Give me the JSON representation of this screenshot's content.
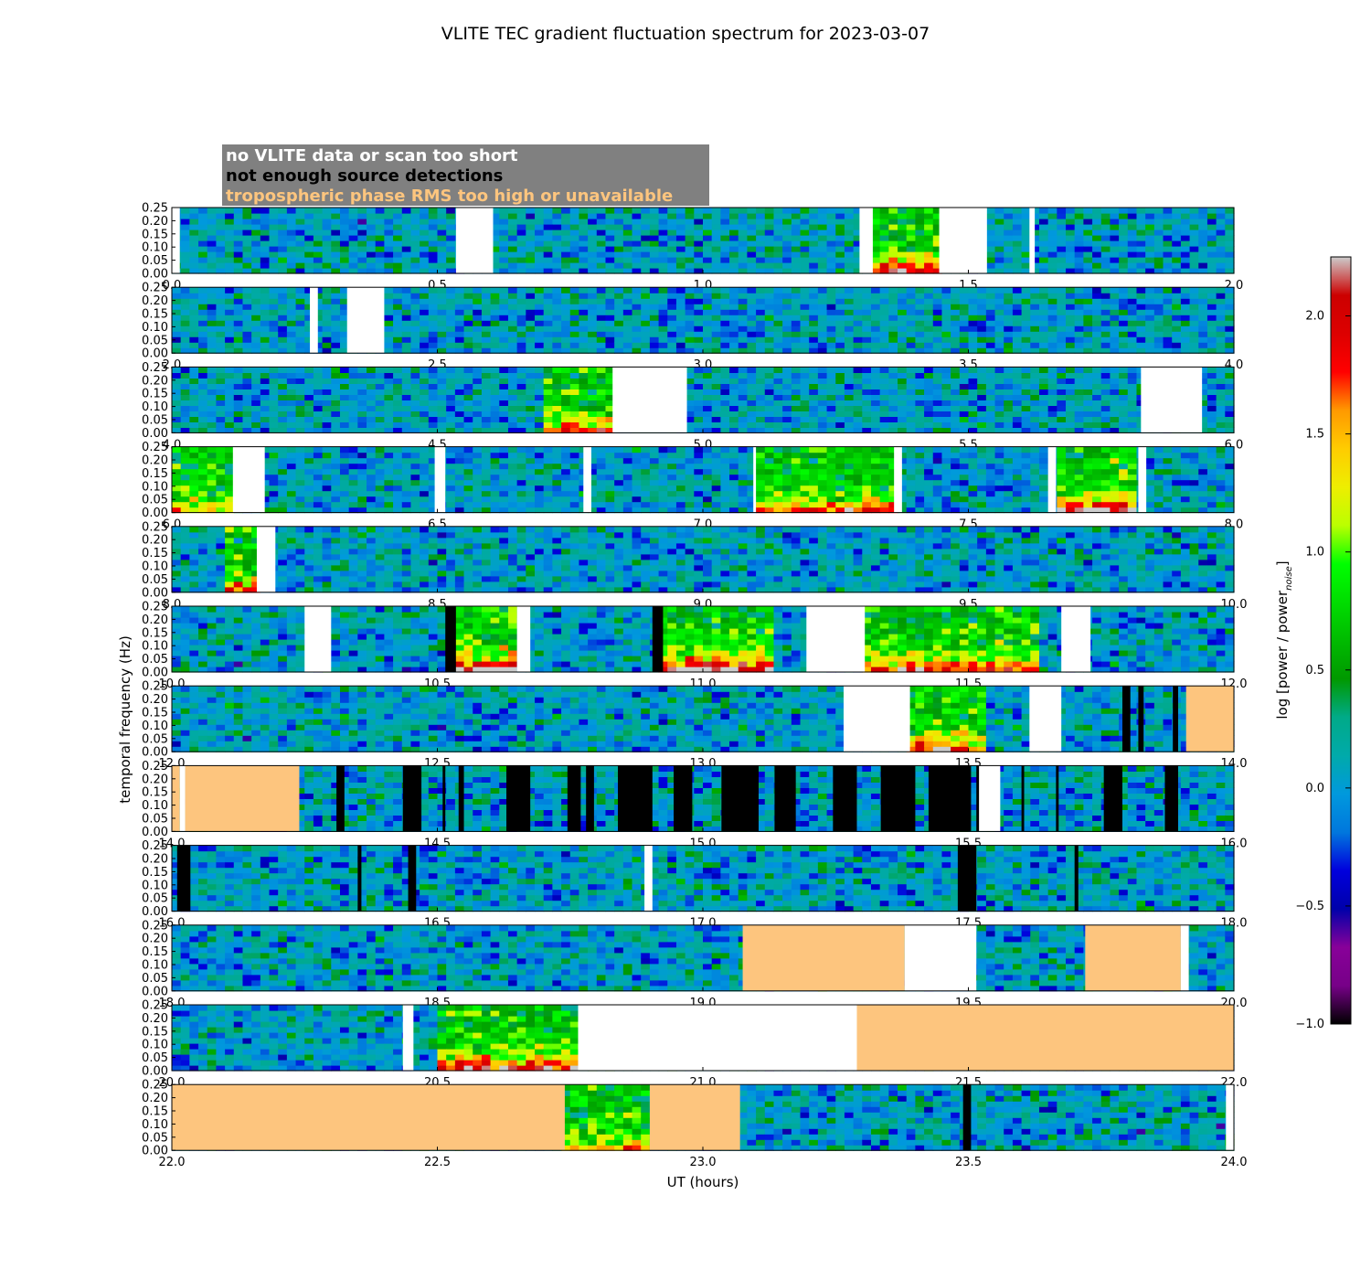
{
  "chart_data": {
    "type": "heatmap",
    "title": "VLITE TEC gradient fluctuation spectrum for 2023-03-07",
    "xlabel": "UT (hours)",
    "ylabel": "temporal frequency (Hz)",
    "colorbar_label": "log [power / power",
    "colorbar_label_subscript": "noise",
    "colorbar_label_close": "]",
    "colorbar_range": [
      -1.0,
      2.25
    ],
    "colorbar_ticks": [
      "−1.0",
      "−0.5",
      "0.0",
      "0.5",
      "1.0",
      "1.5",
      "2.0"
    ],
    "colormap": "nipy_spectral",
    "ylim": [
      0,
      0.25
    ],
    "y_ticks": [
      "0.00",
      "0.05",
      "0.10",
      "0.15",
      "0.20",
      "0.25"
    ],
    "legend": [
      {
        "label": "no VLITE data or scan too short",
        "color": "#ffffff"
      },
      {
        "label": "not enough source detections",
        "color": "#000000"
      },
      {
        "label": "tropospheric phase RMS too high or unavailable",
        "color": "#fdc57e"
      }
    ],
    "panels": [
      {
        "xlim": [
          0,
          2
        ],
        "x_ticks": [
          "0.0",
          "0.5",
          "1.0",
          "1.5",
          "2.0"
        ],
        "nodata": [
          [
            0,
            0.015
          ],
          [
            0.535,
            0.605
          ],
          [
            1.295,
            1.32
          ],
          [
            1.445,
            1.535
          ],
          [
            1.615,
            1.625
          ]
        ],
        "few": [],
        "tropo": [],
        "active": [
          [
            1.32,
            1.445,
            1.6
          ]
        ]
      },
      {
        "xlim": [
          2,
          4
        ],
        "x_ticks": [
          "2.0",
          "2.5",
          "3.0",
          "3.5",
          "4.0"
        ],
        "nodata": [
          [
            2.26,
            2.275
          ],
          [
            2.33,
            2.4
          ]
        ],
        "few": [],
        "tropo": [],
        "active": []
      },
      {
        "xlim": [
          4,
          6
        ],
        "x_ticks": [
          "4.0",
          "4.5",
          "5.0",
          "5.5",
          "6.0"
        ],
        "nodata": [
          [
            4.83,
            4.97
          ],
          [
            5.825,
            5.94
          ]
        ],
        "few": [],
        "tropo": [],
        "active": [
          [
            4.7,
            4.83,
            1.2
          ]
        ]
      },
      {
        "xlim": [
          6,
          8
        ],
        "x_ticks": [
          "6.0",
          "6.5",
          "7.0",
          "7.5",
          "8.0"
        ],
        "nodata": [
          [
            6.115,
            6.175
          ],
          [
            6.495,
            6.515
          ],
          [
            6.775,
            6.79
          ],
          [
            7.095,
            7.1
          ],
          [
            7.36,
            7.375
          ],
          [
            7.65,
            7.665
          ],
          [
            7.82,
            7.835
          ]
        ],
        "few": [],
        "tropo": [],
        "active": [
          [
            7.1,
            7.36,
            1.3
          ],
          [
            7.665,
            7.82,
            1.7
          ],
          [
            6.0,
            6.115,
            0.9
          ]
        ]
      },
      {
        "xlim": [
          8,
          10
        ],
        "x_ticks": [
          "8.0",
          "8.5",
          "9.0",
          "9.5",
          "10.0"
        ],
        "nodata": [
          [
            8.16,
            8.195
          ]
        ],
        "few": [],
        "tropo": [],
        "active": [
          [
            8.095,
            8.16,
            1.3
          ]
        ]
      },
      {
        "xlim": [
          10,
          12
        ],
        "x_ticks": [
          "10.0",
          "10.5",
          "11.0",
          "11.5",
          "12.0"
        ],
        "nodata": [
          [
            10.25,
            10.3
          ],
          [
            10.65,
            10.675
          ],
          [
            11.195,
            11.305
          ],
          [
            11.675,
            11.73
          ]
        ],
        "few": [
          [
            10.515,
            10.535
          ],
          [
            10.905,
            10.925
          ]
        ],
        "tropo": [],
        "active": [
          [
            10.535,
            10.65,
            2.2
          ],
          [
            10.925,
            11.14,
            2.0
          ],
          [
            11.305,
            11.64,
            1.5
          ]
        ]
      },
      {
        "xlim": [
          12,
          14
        ],
        "x_ticks": [
          "12.0",
          "12.5",
          "13.0",
          "13.5",
          "14.0"
        ],
        "nodata": [
          [
            13.265,
            13.39
          ],
          [
            13.615,
            13.675
          ]
        ],
        "few": [
          [
            13.79,
            13.805
          ],
          [
            13.82,
            13.83
          ],
          [
            13.885,
            13.895
          ]
        ],
        "tropo": [
          [
            13.91,
            14.0
          ]
        ],
        "active": [
          [
            13.39,
            13.53,
            1.5
          ]
        ]
      },
      {
        "xlim": [
          14,
          16
        ],
        "x_ticks": [
          "14.0",
          "14.5",
          "15.0",
          "15.5",
          "16.0"
        ],
        "nodata": [
          [
            14.015,
            14.025
          ],
          [
            15.52,
            15.56
          ]
        ],
        "few": [
          [
            14.31,
            14.325
          ],
          [
            14.435,
            14.47
          ],
          [
            14.51,
            14.515
          ],
          [
            14.54,
            14.55
          ],
          [
            14.63,
            14.675
          ],
          [
            14.745,
            14.77
          ],
          [
            14.78,
            14.795
          ],
          [
            14.84,
            14.905
          ],
          [
            14.945,
            14.98
          ],
          [
            15.035,
            15.105
          ],
          [
            15.135,
            15.175
          ],
          [
            15.245,
            15.29
          ],
          [
            15.335,
            15.4
          ],
          [
            15.425,
            15.505
          ],
          [
            15.515,
            15.55
          ],
          [
            15.6,
            15.605
          ],
          [
            15.665,
            15.67
          ],
          [
            15.755,
            15.79
          ],
          [
            15.87,
            15.895
          ]
        ],
        "tropo": [
          [
            14.0,
            14.015
          ],
          [
            14.025,
            14.24
          ]
        ],
        "active": []
      },
      {
        "xlim": [
          16,
          18
        ],
        "x_ticks": [
          "16.0",
          "16.5",
          "17.0",
          "17.5",
          "18.0"
        ],
        "nodata": [
          [
            16.89,
            16.905
          ]
        ],
        "few": [
          [
            16.01,
            16.035
          ],
          [
            16.35,
            16.357
          ],
          [
            16.445,
            16.46
          ],
          [
            17.48,
            17.515
          ],
          [
            17.7,
            17.707
          ]
        ],
        "tropo": [],
        "active": []
      },
      {
        "xlim": [
          18,
          20
        ],
        "x_ticks": [
          "18.0",
          "18.5",
          "19.0",
          "19.5",
          "20.0"
        ],
        "nodata": [
          [
            19.38,
            19.515
          ],
          [
            19.9,
            19.915
          ]
        ],
        "few": [],
        "tropo": [
          [
            19.075,
            19.38
          ],
          [
            19.72,
            19.9
          ]
        ],
        "active": []
      },
      {
        "xlim": [
          20,
          22
        ],
        "x_ticks": [
          "20.0",
          "20.5",
          "21.0",
          "21.5",
          "22.0"
        ],
        "nodata": [
          [
            20.435,
            20.455
          ],
          [
            20.765,
            21.29
          ]
        ],
        "few": [],
        "tropo": [
          [
            21.29,
            22.0
          ]
        ],
        "active": [
          [
            20.5,
            20.765,
            1.6
          ]
        ]
      },
      {
        "xlim": [
          22,
          24
        ],
        "x_ticks": [
          "22.0",
          "22.5",
          "23.0",
          "23.5",
          "24.0"
        ],
        "nodata": [
          [
            23.985,
            24.0
          ]
        ],
        "few": [
          [
            23.49,
            23.505
          ]
        ],
        "tropo": [
          [
            22.0,
            22.74
          ],
          [
            22.9,
            23.07
          ]
        ],
        "active": [
          [
            22.74,
            22.9,
            0.8
          ]
        ]
      }
    ]
  }
}
